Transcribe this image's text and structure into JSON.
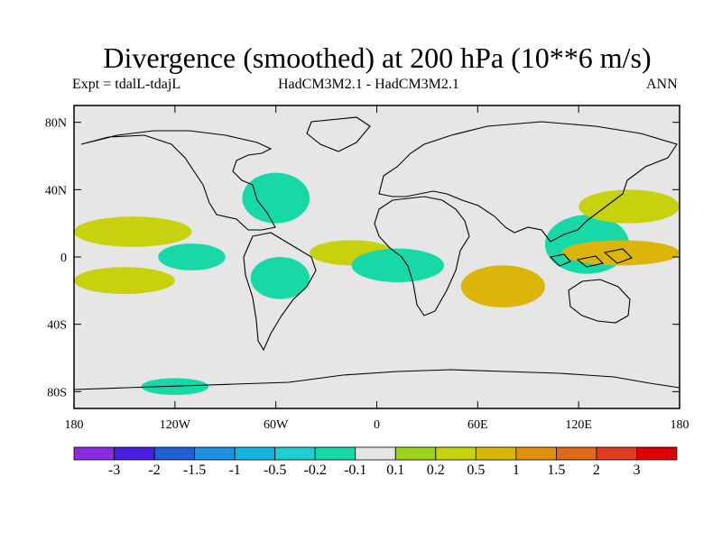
{
  "chart_data": {
    "type": "heatmap",
    "title": "Divergence (smoothed) at 200 hPa (10**6 m/s)",
    "experiment": "Expt = tdalL-tdajL",
    "models": "HadCM3M2.1 - HadCM3M2.1",
    "period": "ANN",
    "x_axis": {
      "range": [
        -180,
        180
      ],
      "ticks": [
        -180,
        -120,
        -60,
        0,
        60,
        120,
        180
      ],
      "tick_labels": [
        "180",
        "120W",
        "60W",
        "0",
        "60E",
        "120E",
        "180"
      ]
    },
    "y_axis": {
      "range": [
        -90,
        90
      ],
      "ticks": [
        80,
        40,
        0,
        -40,
        -80
      ],
      "tick_labels": [
        "80N",
        "40N",
        "0",
        "40S",
        "80S"
      ]
    },
    "colorbar": {
      "levels": [
        "-3",
        "-2",
        "-1.5",
        "-1",
        "-0.5",
        "-0.2",
        "-0.1",
        "0.1",
        "0.2",
        "0.5",
        "1",
        "1.5",
        "2",
        "3"
      ],
      "colors": [
        "#8a2be2",
        "#4a1fe0",
        "#1e5fd6",
        "#1f8fe0",
        "#16b4dc",
        "#1ccfd2",
        "#18d8a8",
        "#e6e6e6",
        "#99d41a",
        "#c7d10e",
        "#dcb50a",
        "#e0900e",
        "#e0681a",
        "#dd3c1e",
        "#dd0000"
      ]
    },
    "features": [
      {
        "name": "north-pacific-band",
        "lon": [
          -180,
          -110
        ],
        "lat": [
          6,
          24
        ],
        "level": "0.2"
      },
      {
        "name": "pacific-south-band",
        "lon": [
          -180,
          -120
        ],
        "lat": [
          -22,
          -6
        ],
        "level": "0.2"
      },
      {
        "name": "east-pacific-neg",
        "lon": [
          -130,
          -90
        ],
        "lat": [
          -8,
          8
        ],
        "level": "-0.2"
      },
      {
        "name": "south-america-neg",
        "lon": [
          -75,
          -40
        ],
        "lat": [
          -25,
          0
        ],
        "level": "-0.2"
      },
      {
        "name": "north-atlantic-neg",
        "lon": [
          -80,
          -40
        ],
        "lat": [
          20,
          50
        ],
        "level": "-0.2"
      },
      {
        "name": "atlantic-band",
        "lon": [
          -40,
          10
        ],
        "lat": [
          -5,
          10
        ],
        "level": "0.2"
      },
      {
        "name": "africa-neg",
        "lon": [
          -15,
          40
        ],
        "lat": [
          -15,
          5
        ],
        "level": "-0.2"
      },
      {
        "name": "indian-ocean-pos",
        "lon": [
          50,
          100
        ],
        "lat": [
          -30,
          -5
        ],
        "level": "0.5"
      },
      {
        "name": "maritime-continent-neg",
        "lon": [
          100,
          150
        ],
        "lat": [
          -10,
          25
        ],
        "level": "-0.2"
      },
      {
        "name": "west-pacific-pos",
        "lon": [
          110,
          180
        ],
        "lat": [
          -5,
          10
        ],
        "level": "0.5"
      },
      {
        "name": "north-west-pacific-band",
        "lon": [
          120,
          180
        ],
        "lat": [
          20,
          40
        ],
        "level": "0.2"
      },
      {
        "name": "antarctic-neg",
        "lon": [
          -140,
          -100
        ],
        "lat": [
          -82,
          -72
        ],
        "level": "-0.2"
      }
    ]
  }
}
